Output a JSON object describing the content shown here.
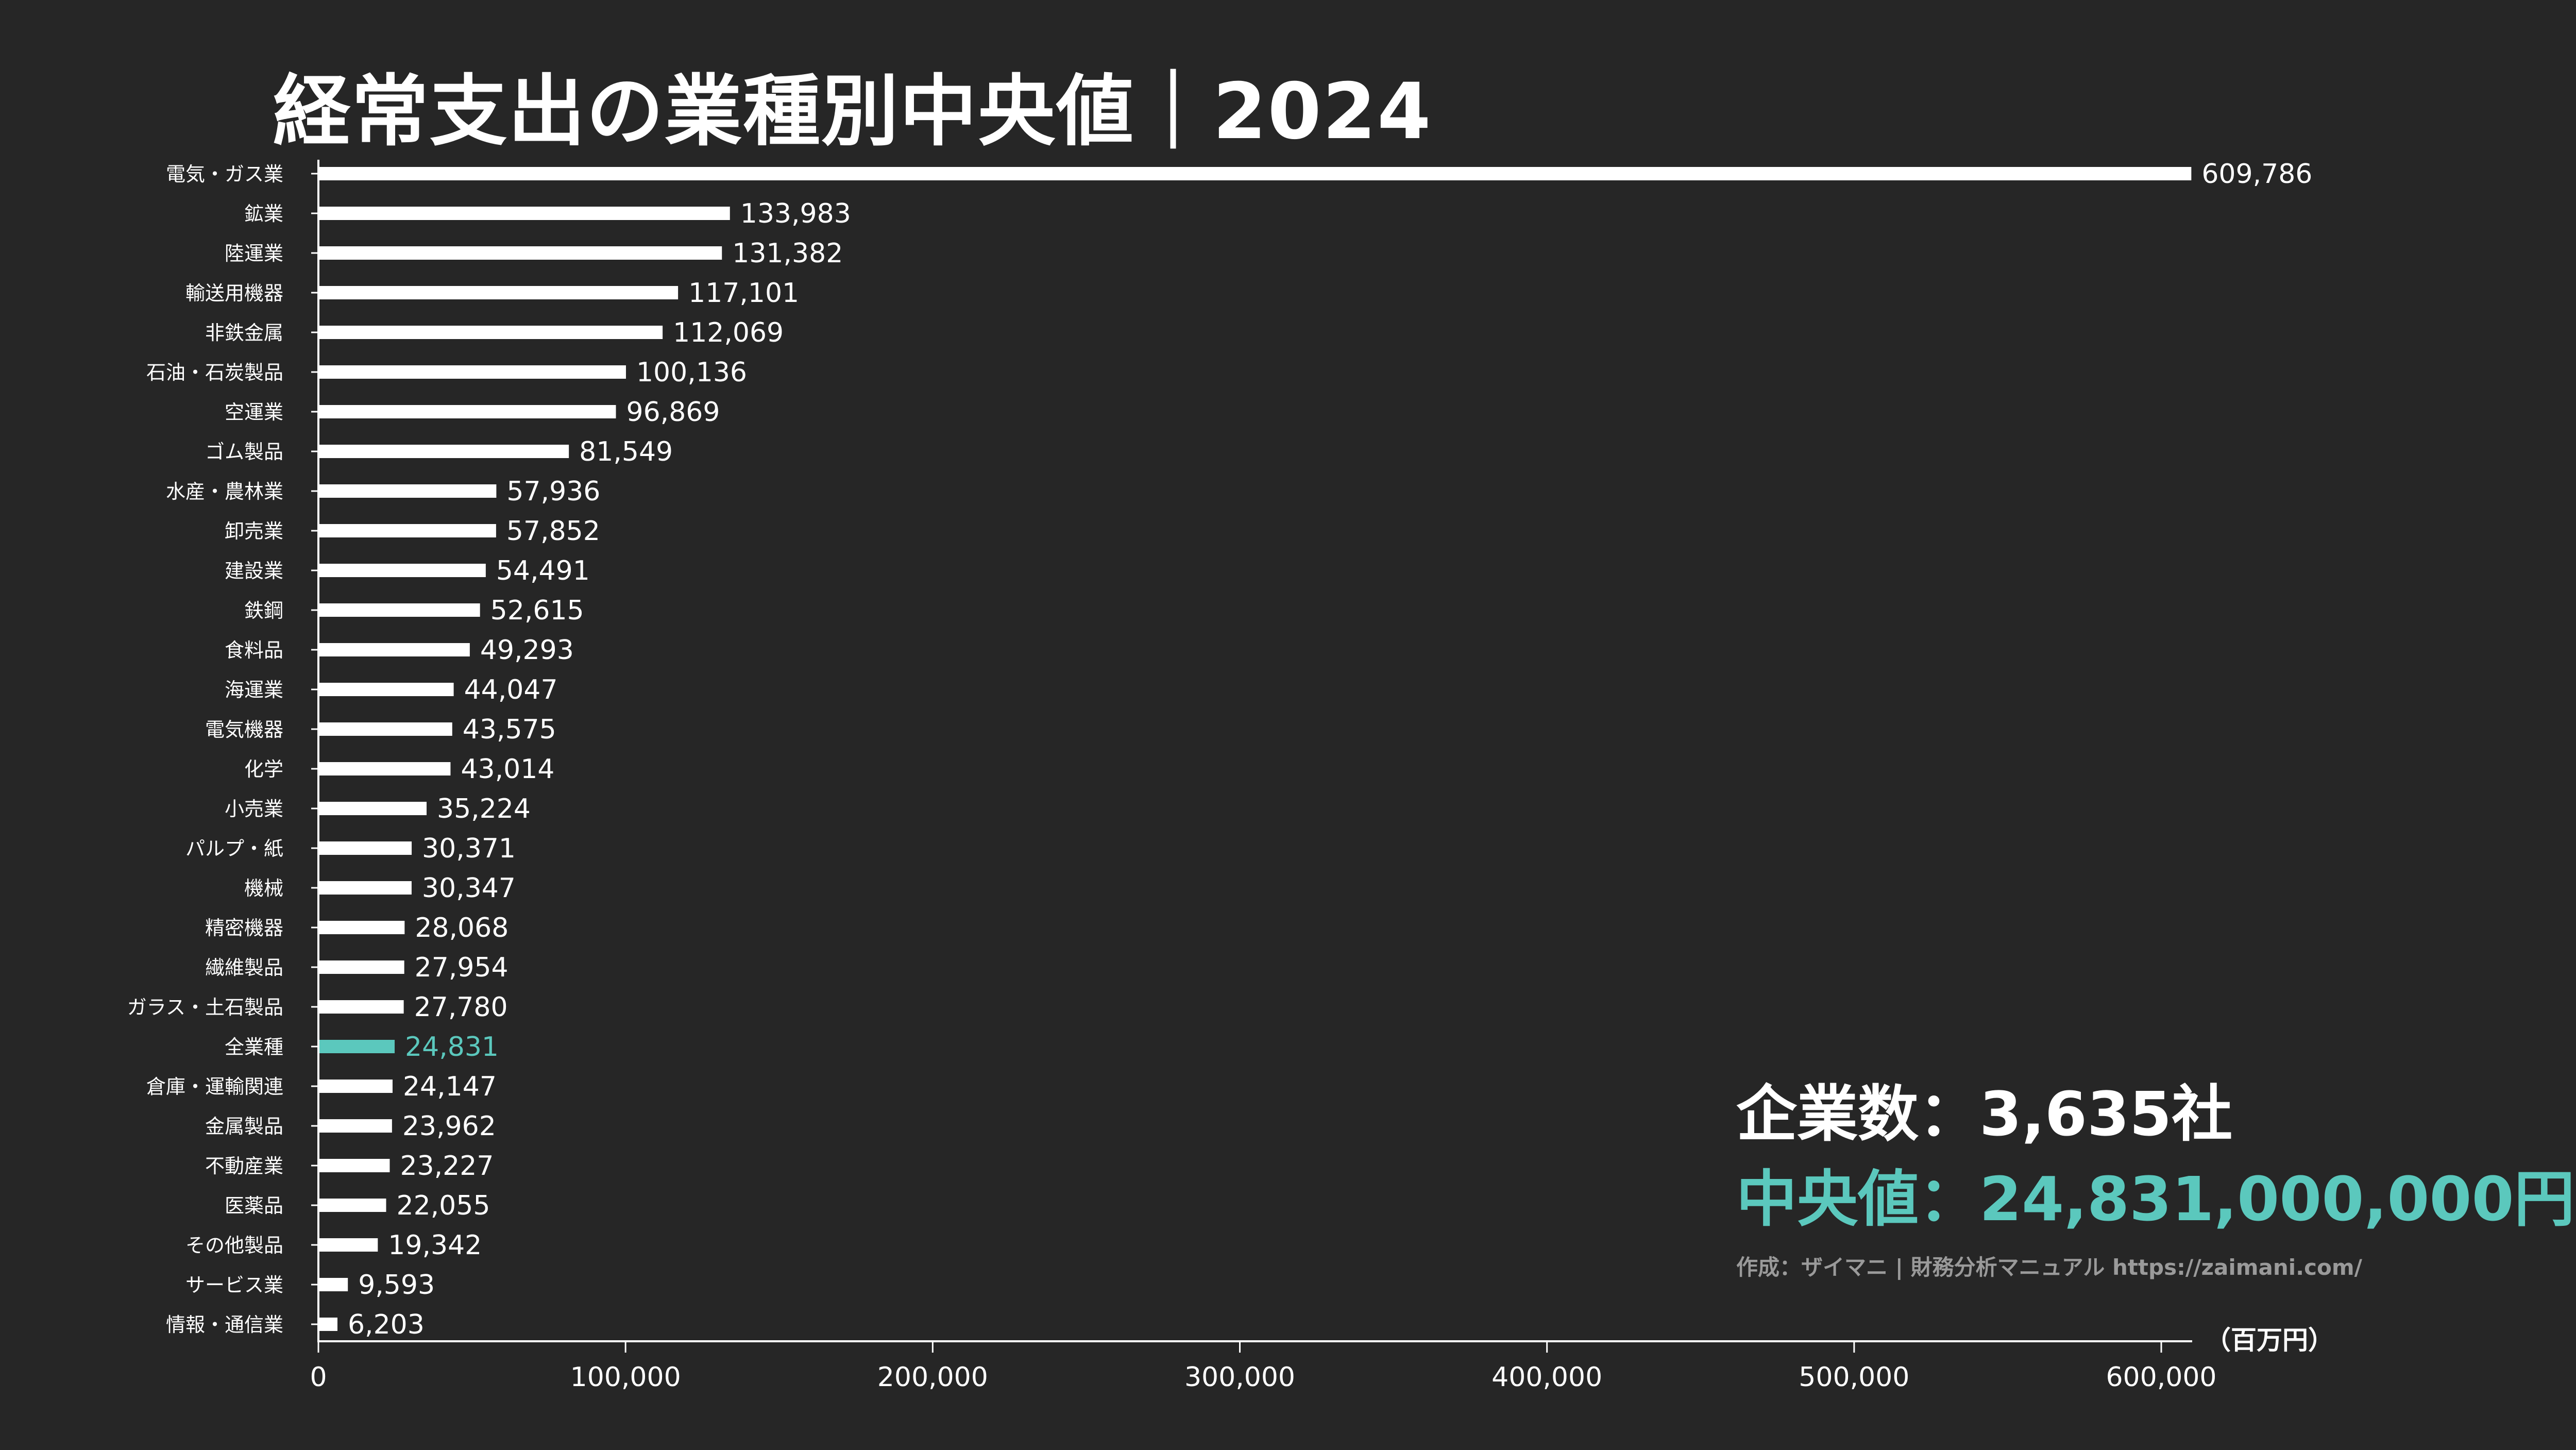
{
  "chart_data": {
    "type": "bar",
    "orientation": "horizontal",
    "title": "経常支出の業種別中央値｜2024",
    "unit_label": "（百万円）",
    "xlim": [
      0,
      600000
    ],
    "x_ticks": [
      "0",
      "100,000",
      "200,000",
      "300,000",
      "400,000",
      "500,000",
      "600,000"
    ],
    "highlight_category": "全業種",
    "colors": {
      "bar": "#ffffff",
      "highlight": "#5bc8bd",
      "background": "#262626"
    },
    "categories": [
      "電気・ガス業",
      "鉱業",
      "陸運業",
      "輸送用機器",
      "非鉄金属",
      "石油・石炭製品",
      "空運業",
      "ゴム製品",
      "水産・農林業",
      "卸売業",
      "建設業",
      "鉄鋼",
      "食料品",
      "海運業",
      "電気機器",
      "化学",
      "小売業",
      "パルプ・紙",
      "機械",
      "精密機器",
      "繊維製品",
      "ガラス・土石製品",
      "全業種",
      "倉庫・運輸関連",
      "金属製品",
      "不動産業",
      "医薬品",
      "その他製品",
      "サービス業",
      "情報・通信業"
    ],
    "values": [
      609786,
      133983,
      131382,
      117101,
      112069,
      100136,
      96869,
      81549,
      57936,
      57852,
      54491,
      52615,
      49293,
      44047,
      43575,
      43014,
      35224,
      30371,
      30347,
      28068,
      27954,
      27780,
      24831,
      24147,
      23962,
      23227,
      22055,
      19342,
      9593,
      6203
    ],
    "value_labels": [
      "609,786",
      "133,983",
      "131,382",
      "117,101",
      "112,069",
      "100,136",
      "96,869",
      "81,549",
      "57,936",
      "57,852",
      "54,491",
      "52,615",
      "49,293",
      "44,047",
      "43,575",
      "43,014",
      "35,224",
      "30,371",
      "30,347",
      "28,068",
      "27,954",
      "27,780",
      "24,831",
      "24,147",
      "23,962",
      "23,227",
      "22,055",
      "19,342",
      "9,593",
      "6,203"
    ]
  },
  "summary": {
    "company_count": "企業数：3,635社",
    "median": "中央値：24,831,000,000円",
    "credit": "作成：ザイマニ | 財務分析マニュアル https://zaimani.com/"
  }
}
